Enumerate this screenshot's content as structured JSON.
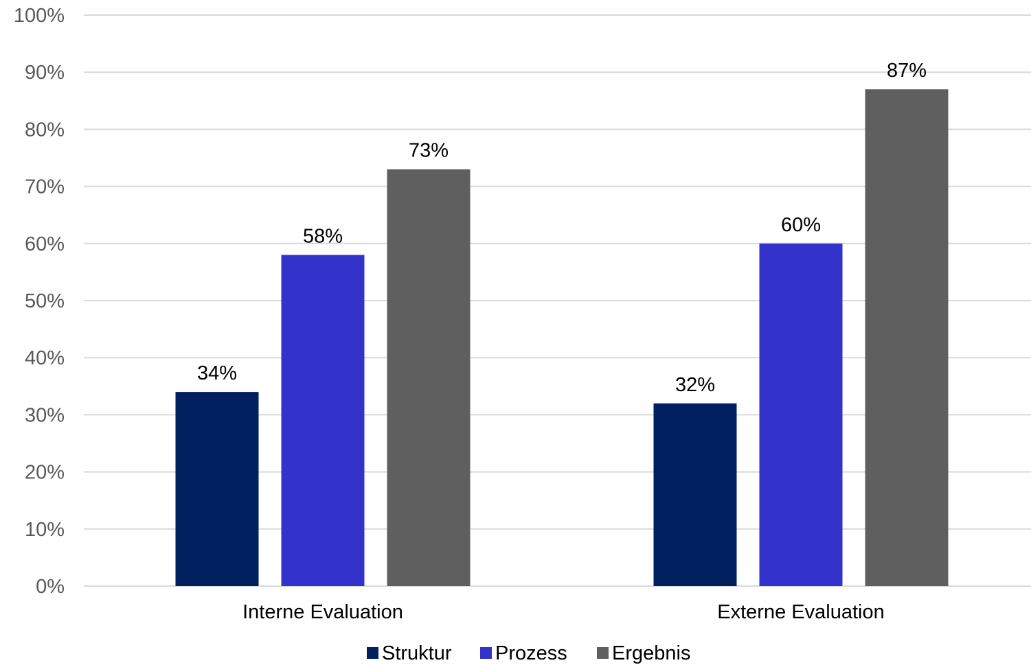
{
  "chart_data": {
    "type": "bar",
    "categories": [
      "Interne Evaluation",
      "Externe Evaluation"
    ],
    "series": [
      {
        "name": "Struktur",
        "values": [
          34,
          32
        ],
        "labels": [
          "34%",
          "32%"
        ],
        "color": "#002060"
      },
      {
        "name": "Prozess",
        "values": [
          58,
          60
        ],
        "labels": [
          "58%",
          "60%"
        ],
        "color": "#3333cc"
      },
      {
        "name": "Ergebnis",
        "values": [
          73,
          87
        ],
        "labels": [
          "73%",
          "87%"
        ],
        "color": "#5f5f5f"
      }
    ],
    "y_ticks": [
      "0%",
      "10%",
      "20%",
      "30%",
      "40%",
      "50%",
      "60%",
      "70%",
      "80%",
      "90%",
      "100%"
    ],
    "ylim": [
      0,
      100
    ],
    "grid": true,
    "legend_position": "bottom",
    "gridline_color": "#d9d9d9"
  }
}
